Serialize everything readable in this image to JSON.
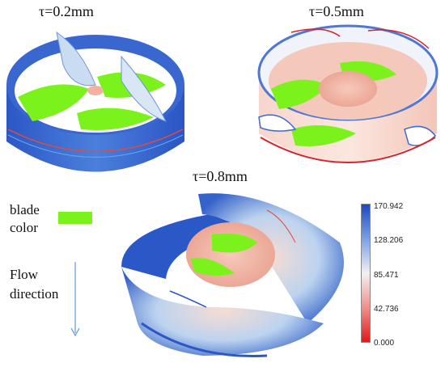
{
  "panels": [
    {
      "caption": "τ=0.2mm"
    },
    {
      "caption": "τ=0.5mm"
    },
    {
      "caption": "τ=0.8mm"
    }
  ],
  "legend": {
    "blade_label_line1": "blade",
    "blade_label_line2": "color",
    "flow_label_line1": "Flow",
    "flow_label_line2": "direction",
    "blade_color": "#7cf21c"
  },
  "colorbar": {
    "ticks": [
      "170.942",
      "128.206",
      "85.471",
      "42.736",
      "0.000"
    ],
    "colors": {
      "high": "#1e49c2",
      "mid": "#f1f1f1",
      "low": "#e0191c"
    }
  }
}
